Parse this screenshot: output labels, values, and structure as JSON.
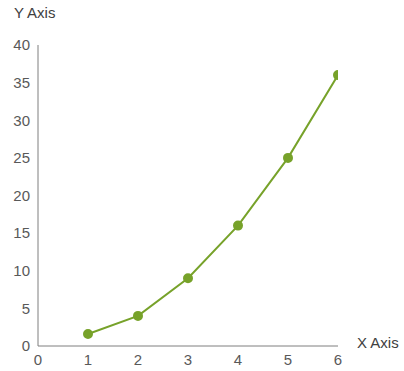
{
  "chart_data": {
    "type": "line",
    "x_label": "X Axis",
    "y_label": "Y Axis",
    "x": [
      1,
      2,
      3,
      4,
      5,
      6
    ],
    "values": [
      1.6,
      4,
      9,
      16,
      25,
      36
    ],
    "color": "#77a22a",
    "marker": "circle",
    "xlim": [
      0,
      6
    ],
    "xticks": [
      0,
      1,
      2,
      3,
      4,
      5,
      6
    ],
    "ylim": [
      0,
      40
    ],
    "yticks": [
      0,
      5,
      10,
      15,
      20,
      25,
      30,
      35,
      40
    ],
    "grid": false
  }
}
